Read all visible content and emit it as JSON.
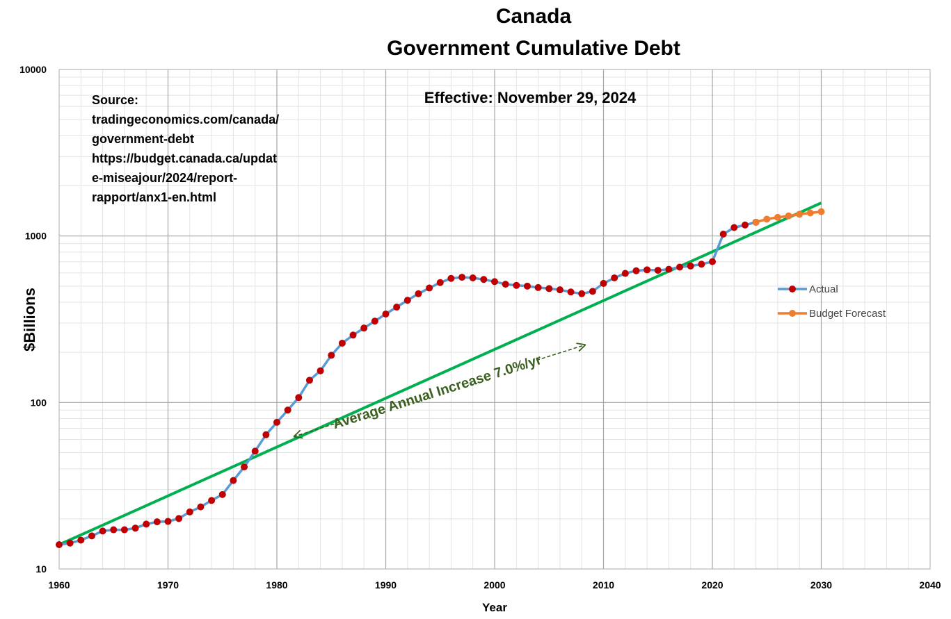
{
  "chart_data": {
    "type": "line",
    "title_lines": [
      "Canada",
      "Government Cumulative Debt"
    ],
    "xlabel": "Year",
    "ylabel": "$Billions",
    "xlim": [
      1960,
      2040
    ],
    "ylim": [
      10,
      10000
    ],
    "yscale": "log",
    "grid": true,
    "x_ticks": [
      "1960",
      "1970",
      "1980",
      "1990",
      "2000",
      "2010",
      "2020",
      "2030",
      "2040"
    ],
    "y_ticks": [
      "10",
      "100",
      "1000",
      "10000"
    ],
    "legend_position": "right",
    "annotations": {
      "source": [
        "Source:",
        "tradingeconomics.com/canada/",
        "government-debt",
        "https://budget.canada.ca/updat",
        "e-miseajour/2024/report-",
        "rapport/anx1-en.html"
      ],
      "effective": "Effective: November 29, 2024",
      "trend_text": "Average Annual Increase 7.0%/yr"
    },
    "series": [
      {
        "name": "Actual",
        "line_color": "#5b9bd5",
        "marker_color": "#c00000",
        "x": [
          1960,
          1961,
          1962,
          1963,
          1964,
          1965,
          1966,
          1967,
          1968,
          1969,
          1970,
          1971,
          1972,
          1973,
          1974,
          1975,
          1976,
          1977,
          1978,
          1979,
          1980,
          1981,
          1982,
          1983,
          1984,
          1985,
          1986,
          1987,
          1988,
          1989,
          1990,
          1991,
          1992,
          1993,
          1994,
          1995,
          1996,
          1997,
          1998,
          1999,
          2000,
          2001,
          2002,
          2003,
          2004,
          2005,
          2006,
          2007,
          2008,
          2009,
          2010,
          2011,
          2012,
          2013,
          2014,
          2015,
          2016,
          2017,
          2018,
          2019,
          2020,
          2021,
          2022,
          2023,
          2024
        ],
        "y": [
          14,
          14.3,
          14.9,
          15.8,
          16.9,
          17.2,
          17.2,
          17.6,
          18.6,
          19.2,
          19.3,
          20.1,
          22,
          23.6,
          25.8,
          28,
          34,
          41,
          51,
          64,
          76,
          90,
          107,
          136,
          155,
          192,
          227,
          254,
          280,
          308,
          340,
          374,
          411,
          450,
          487,
          525,
          556,
          565,
          560,
          548,
          532,
          513,
          505,
          500,
          490,
          483,
          475,
          461,
          450,
          465,
          519,
          560,
          596,
          618,
          626,
          622,
          631,
          650,
          660,
          677,
          701,
          1026,
          1124,
          1164,
          1210
        ]
      },
      {
        "name": "Budget Forecast",
        "line_color": "#ed7d31",
        "marker_color": "#ed7d31",
        "x": [
          2024,
          2025,
          2026,
          2027,
          2028,
          2029,
          2030
        ],
        "y": [
          1210,
          1262,
          1293,
          1320,
          1350,
          1375,
          1400
        ]
      },
      {
        "type": "trend",
        "line_color": "#00b050",
        "x": [
          1960,
          2030
        ],
        "y": [
          14,
          1580
        ]
      }
    ]
  }
}
